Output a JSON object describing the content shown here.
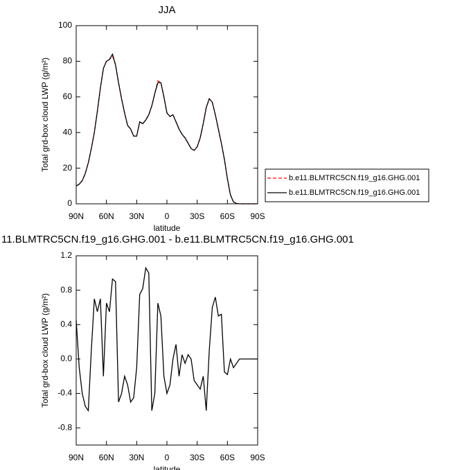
{
  "chart_data": [
    {
      "type": "line",
      "title": "JJA",
      "xlabel": "latitude",
      "ylabel": "Total grd-box cloud LWP (g/m²)",
      "x": [
        90,
        87,
        84,
        81,
        78,
        75,
        72,
        69,
        66,
        63,
        60,
        57,
        54,
        51,
        48,
        45,
        42,
        39,
        36,
        33,
        30,
        27,
        24,
        21,
        18,
        15,
        12,
        9,
        6,
        3,
        0,
        -3,
        -6,
        -9,
        -12,
        -15,
        -18,
        -21,
        -24,
        -27,
        -30,
        -33,
        -36,
        -39,
        -42,
        -45,
        -48,
        -51,
        -54,
        -57,
        -60,
        -63,
        -66,
        -69,
        -72,
        -75,
        -78,
        -81,
        -84,
        -87,
        -90
      ],
      "series": [
        {
          "name": "b.e11.BLMTRC5CN.f19_g16.GHG.001",
          "color": "#ff0000",
          "line_style": "dashed",
          "values": [
            10,
            11,
            13,
            17,
            23,
            31,
            40,
            52,
            65,
            76,
            80,
            81,
            83,
            78,
            68,
            59,
            51,
            44,
            42,
            38,
            38,
            46,
            45,
            47,
            50,
            55,
            62,
            69,
            68,
            60,
            51,
            49,
            50,
            46,
            42,
            39,
            37,
            34,
            31,
            30,
            32,
            37,
            45,
            54,
            59,
            57,
            50,
            42,
            34,
            25,
            14,
            5,
            1,
            0.2,
            0,
            0,
            0,
            0,
            0,
            0,
            0
          ]
        },
        {
          "name": "b.e11.BLMTRC5CN.f19_g16.GHG.001",
          "color": "#000000",
          "line_style": "solid",
          "values": [
            10,
            11,
            13,
            17,
            23,
            31,
            40,
            52,
            65,
            76,
            80,
            81,
            84,
            78,
            68,
            59,
            51,
            44,
            42,
            38,
            38,
            46,
            45,
            47,
            50,
            55,
            62,
            68,
            68,
            60,
            51,
            49,
            50,
            46,
            42,
            39,
            37,
            34,
            31,
            30,
            32,
            37,
            45,
            54,
            59,
            57,
            50,
            42,
            34,
            25,
            14,
            5,
            1,
            0.2,
            0,
            0,
            0,
            0,
            0,
            0,
            0
          ]
        }
      ],
      "xlim": [
        90,
        -90
      ],
      "xticks": [
        {
          "value": 90,
          "label": "90N"
        },
        {
          "value": 60,
          "label": "60N"
        },
        {
          "value": 30,
          "label": "30N"
        },
        0,
        {
          "value": -30,
          "label": "30S"
        },
        {
          "value": -60,
          "label": "60S"
        },
        {
          "value": -90,
          "label": "90S"
        }
      ],
      "ylim": [
        0,
        100
      ],
      "yticks": [
        0,
        20,
        40,
        60,
        80,
        100
      ],
      "legend": "right"
    },
    {
      "type": "line",
      "title": "11.BLMTRC5CN.f19_g16.GHG.001 - b.e11.BLMTRC5CN.f19_g16.GHG.001",
      "xlabel": "latitude",
      "ylabel": "Total grd-box cloud LWP (g/m²)",
      "x": [
        90,
        87,
        84,
        81,
        78,
        75,
        72,
        69,
        66,
        63,
        60,
        57,
        54,
        51,
        48,
        45,
        42,
        39,
        36,
        33,
        30,
        27,
        24,
        21,
        18,
        15,
        12,
        9,
        6,
        3,
        0,
        -3,
        -6,
        -9,
        -12,
        -15,
        -18,
        -21,
        -24,
        -27,
        -30,
        -33,
        -36,
        -39,
        -42,
        -45,
        -48,
        -51,
        -54,
        -57,
        -60,
        -63,
        -66,
        -69,
        -72,
        -75,
        -78,
        -81,
        -84,
        -87,
        -90
      ],
      "series": [
        {
          "color": "#000000",
          "line_style": "solid",
          "values": [
            0.45,
            -0.1,
            -0.4,
            -0.55,
            -0.6,
            0.1,
            0.7,
            0.55,
            0.7,
            -0.2,
            0.65,
            0.55,
            0.93,
            0.9,
            -0.5,
            -0.4,
            -0.2,
            -0.3,
            -0.5,
            -0.45,
            -0.1,
            0.75,
            0.82,
            1.06,
            1.0,
            -0.6,
            -0.4,
            0.65,
            0.5,
            -0.2,
            -0.4,
            -0.3,
            0.0,
            0.17,
            -0.2,
            0.05,
            -0.05,
            0.05,
            0.0,
            -0.25,
            -0.3,
            -0.35,
            -0.2,
            -0.6,
            0.1,
            0.6,
            0.72,
            0.5,
            0.52,
            -0.15,
            -0.18,
            0.0,
            -0.1,
            -0.05,
            0.0,
            0,
            0,
            0,
            0,
            0,
            0
          ]
        }
      ],
      "xlim": [
        90,
        -90
      ],
      "xticks": [
        {
          "value": 90,
          "label": "90N"
        },
        {
          "value": 60,
          "label": "60N"
        },
        {
          "value": 30,
          "label": "30N"
        },
        0,
        {
          "value": -30,
          "label": "30S"
        },
        {
          "value": -60,
          "label": "60S"
        },
        {
          "value": -90,
          "label": "90S"
        }
      ],
      "ylim": [
        -1,
        1.2
      ],
      "yticks": [
        -0.8,
        -0.4,
        {
          "value": 0,
          "label": "0.0"
        },
        0.4,
        0.8,
        1.2
      ]
    }
  ]
}
